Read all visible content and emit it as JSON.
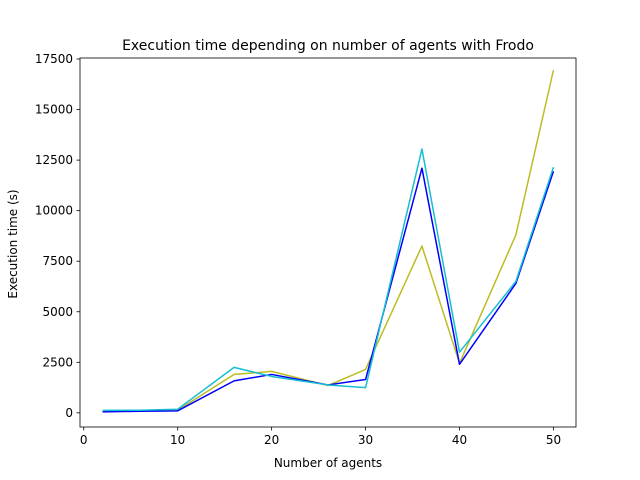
{
  "chart_data": {
    "type": "line",
    "title": "Execution time depending on number of agents with Frodo",
    "xlabel": "Number of agents",
    "ylabel": "Execution time (s)",
    "xlim": [
      -0.4,
      52.4
    ],
    "ylim": [
      -700,
      17550
    ],
    "xticks": [
      0,
      10,
      20,
      30,
      40,
      50
    ],
    "xtick_labels": [
      "0",
      "10",
      "20",
      "30",
      "40",
      "50"
    ],
    "yticks": [
      0,
      2500,
      5000,
      7500,
      10000,
      12500,
      15000,
      17500
    ],
    "ytick_labels": [
      "0",
      "2500",
      "5000",
      "7500",
      "10000",
      "12500",
      "15000",
      "17500"
    ],
    "grid": false,
    "legend": null,
    "series": [
      {
        "color": "#bcbd22",
        "x": [
          2,
          6,
          10,
          16,
          20,
          26,
          30,
          36,
          40,
          46,
          50
        ],
        "y": [
          80,
          100,
          130,
          1900,
          2050,
          1350,
          2150,
          8250,
          2450,
          8800,
          16950
        ]
      },
      {
        "color": "#0000ff",
        "x": [
          2,
          6,
          10,
          16,
          20,
          26,
          30,
          36,
          40,
          46,
          50
        ],
        "y": [
          50,
          80,
          100,
          1580,
          1900,
          1380,
          1650,
          12100,
          2400,
          6400,
          11950
        ]
      },
      {
        "color": "#17becf",
        "x": [
          2,
          6,
          10,
          16,
          20,
          26,
          30,
          36,
          40,
          46,
          50
        ],
        "y": [
          120,
          130,
          180,
          2250,
          1800,
          1380,
          1250,
          13050,
          3000,
          6500,
          12150
        ]
      }
    ]
  }
}
